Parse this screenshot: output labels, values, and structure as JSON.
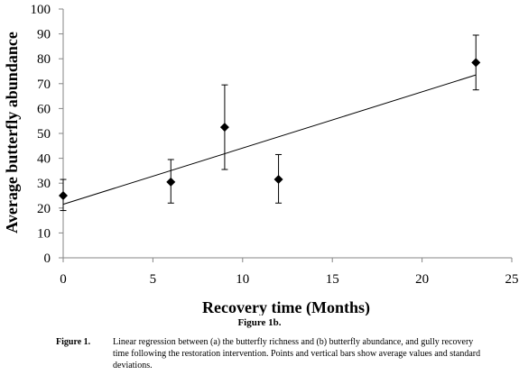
{
  "chart_data": {
    "type": "scatter",
    "xlabel": "Recovery time (Months)",
    "ylabel": "Average butterfly abundance",
    "xlim": [
      0,
      25
    ],
    "ylim": [
      0,
      100
    ],
    "xticks": [
      "0",
      "5",
      "10",
      "15",
      "20",
      "25"
    ],
    "yticks": [
      "0",
      "10",
      "20",
      "30",
      "40",
      "50",
      "60",
      "70",
      "80",
      "90",
      "100"
    ],
    "grid": false,
    "legend": "none",
    "points": [
      {
        "x": 0,
        "y": 25,
        "err_low": 19,
        "err_high": 31.5
      },
      {
        "x": 6,
        "y": 30.5,
        "err_low": 22,
        "err_high": 39.5
      },
      {
        "x": 9,
        "y": 52.5,
        "err_low": 35.5,
        "err_high": 69.5
      },
      {
        "x": 12,
        "y": 31.5,
        "err_low": 22,
        "err_high": 41.5
      },
      {
        "x": 23,
        "y": 78.5,
        "err_low": 67.5,
        "err_high": 89.5
      }
    ],
    "regression": {
      "x": [
        0,
        23
      ],
      "y": [
        21.5,
        73.5
      ]
    },
    "marker": "diamond",
    "color": "#000000"
  },
  "figure_sub": "Figure 1b.",
  "caption": {
    "label": "Figure 1.",
    "text": "Linear regression between (a) the butterfly richness and (b) butterfly abundance, and gully recovery time following the restoration intervention. Points and vertical bars show average values and standard deviations."
  }
}
